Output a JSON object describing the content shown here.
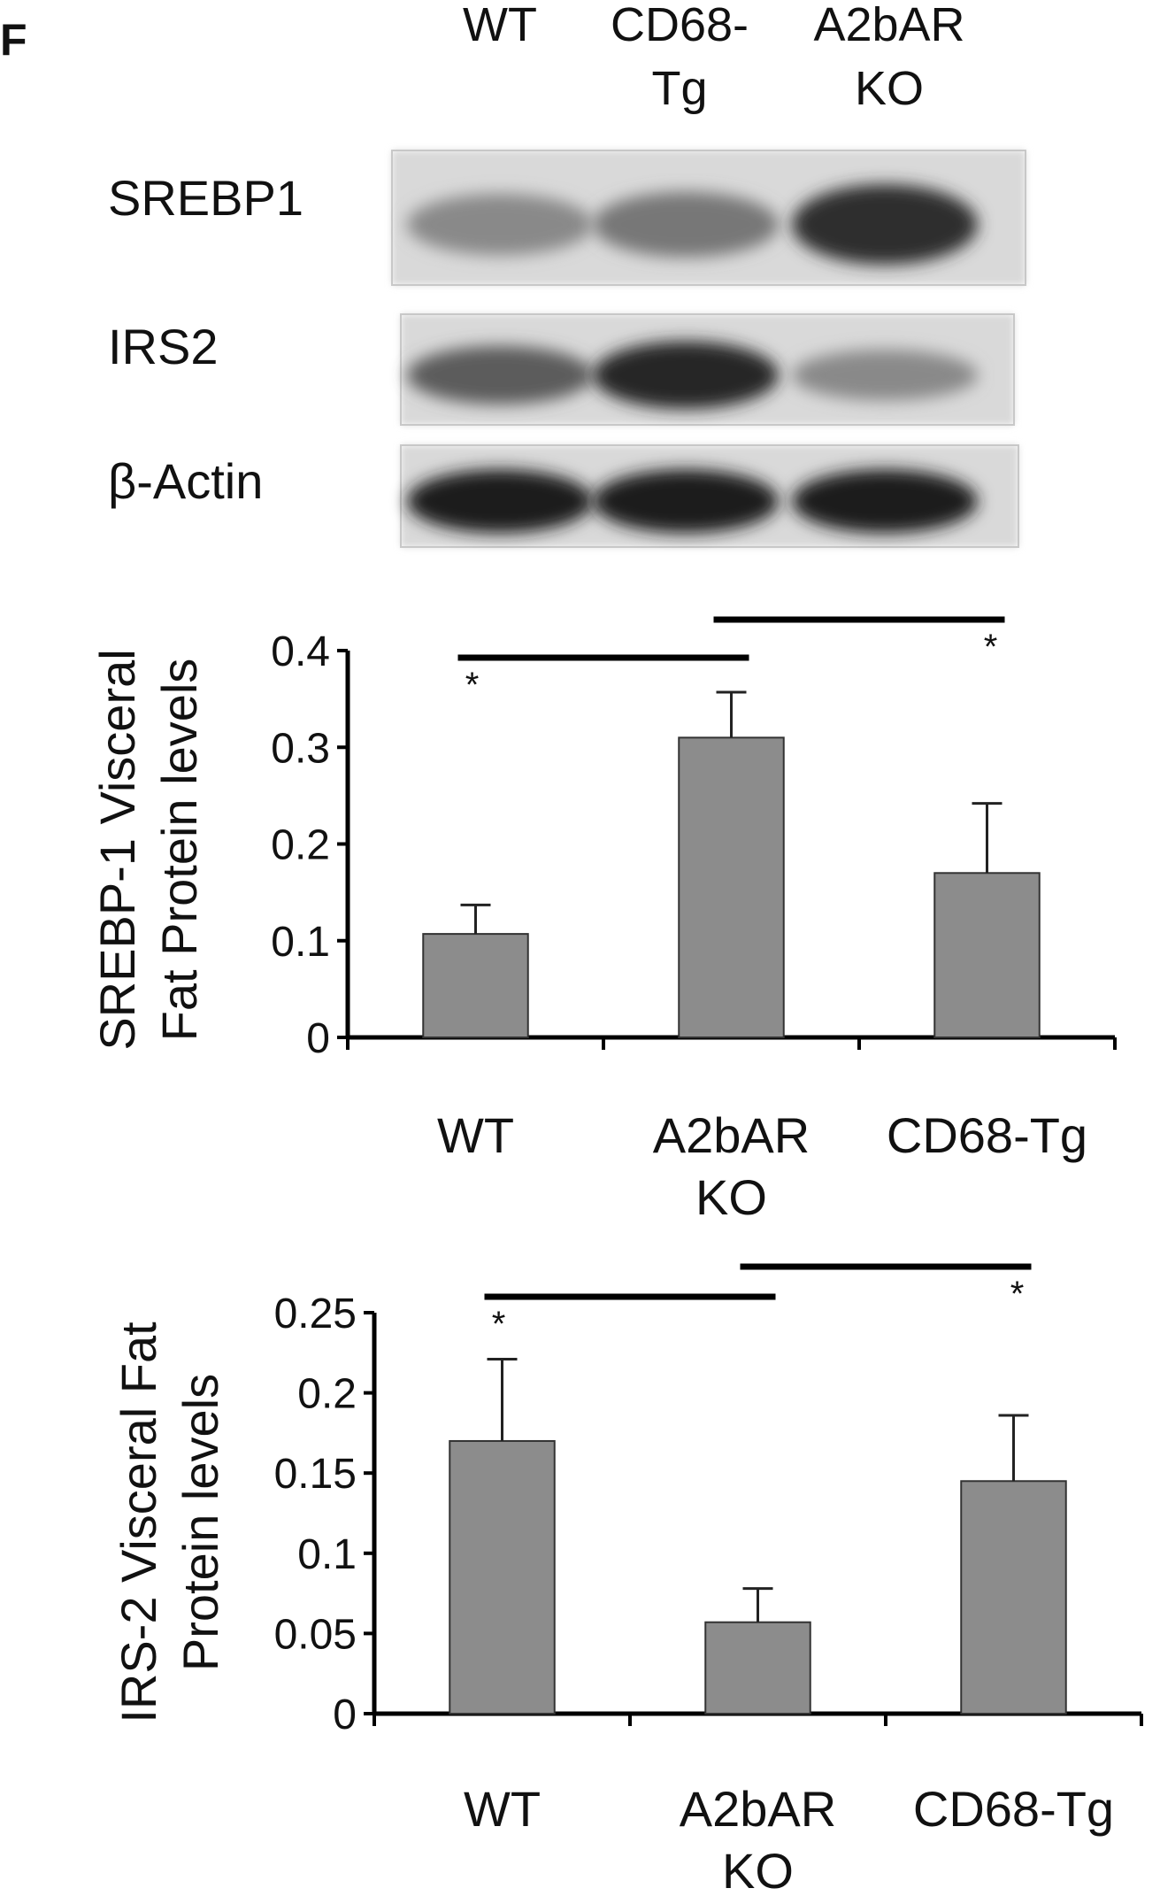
{
  "panel_label": "F",
  "blot": {
    "lane_headers": [
      {
        "lines": [
          "WT"
        ]
      },
      {
        "lines": [
          "CD68-",
          "Tg"
        ]
      },
      {
        "lines": [
          "A2bAR",
          "KO"
        ]
      }
    ],
    "rows": [
      {
        "label": "SREBP1",
        "band_intensity": [
          0.35,
          0.45,
          0.85
        ]
      },
      {
        "label": "IRS2",
        "band_intensity": [
          0.6,
          0.9,
          0.35
        ]
      },
      {
        "label": "β-Actin",
        "band_intensity": [
          0.95,
          0.95,
          0.95
        ]
      }
    ]
  },
  "chart_data": [
    {
      "type": "bar",
      "categories": [
        [
          "WT"
        ],
        [
          "A2bAR",
          "KO"
        ],
        [
          "CD68-Tg"
        ]
      ],
      "values": [
        0.107,
        0.31,
        0.17
      ],
      "errors": [
        0.03,
        0.047,
        0.072
      ],
      "ylabel": [
        "SREBP-1 Visceral",
        "Fat Protein levels"
      ],
      "ylim": [
        0,
        0.4
      ],
      "yticks": [
        0,
        0.1,
        0.2,
        0.3,
        0.4
      ],
      "ytick_labels": [
        "0",
        "0.1",
        "0.2",
        "0.3",
        "0.4"
      ],
      "bar_color": "#8c8c8c",
      "significance": [
        {
          "from": 0,
          "to": 1,
          "label": "*",
          "star_at": 0,
          "star_pos": "below"
        },
        {
          "from": 1,
          "to": 2,
          "label": "*",
          "star_at": 2,
          "star_pos": "below"
        }
      ]
    },
    {
      "type": "bar",
      "categories": [
        [
          "WT"
        ],
        [
          "A2bAR",
          "KO"
        ],
        [
          "CD68-Tg"
        ]
      ],
      "values": [
        0.17,
        0.057,
        0.145
      ],
      "errors": [
        0.051,
        0.021,
        0.041
      ],
      "ylabel": [
        "IRS-2 Visceral Fat",
        "Protein levels"
      ],
      "ylim": [
        0,
        0.25
      ],
      "yticks": [
        0,
        0.05,
        0.1,
        0.15,
        0.2,
        0.25
      ],
      "ytick_labels": [
        "0",
        "0.05",
        "0.1",
        "0.15",
        "0.2",
        "0.25"
      ],
      "bar_color": "#8c8c8c",
      "significance": [
        {
          "from": 0,
          "to": 1,
          "label": "*",
          "star_at": 0,
          "star_pos": "below"
        },
        {
          "from": 1,
          "to": 2,
          "label": "*",
          "star_at": 2,
          "star_pos": "below"
        }
      ]
    }
  ]
}
